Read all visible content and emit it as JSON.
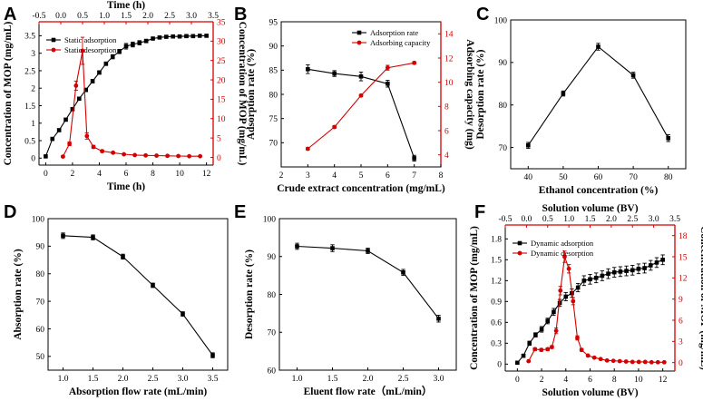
{
  "chart_data": [
    {
      "panel": "A",
      "type": "line",
      "xlabel": "Time (h)",
      "ylabel": "Concentration of MOP (mg/mL)",
      "x2label": "Time (h)",
      "y2label": "Concentration of MOP (mg/mL)",
      "xlim": [
        -0.5,
        12.5
      ],
      "ylim": [
        -0.2,
        3.9
      ],
      "x2lim": [
        -0.5,
        3.5
      ],
      "y2lim": [
        -2,
        35
      ],
      "xticks": [
        0,
        2,
        4,
        6,
        8,
        10,
        12
      ],
      "yticks": [
        0,
        0.5,
        1,
        1.5,
        2,
        2.5,
        3,
        3.5
      ],
      "x2ticks": [
        -0.5,
        0.0,
        0.5,
        1.0,
        1.5,
        2.0,
        2.5,
        3.0,
        3.5
      ],
      "y2ticks": [
        0,
        5,
        10,
        15,
        20,
        25,
        30,
        35
      ],
      "xtick_labels": [
        "0",
        "2",
        "4",
        "6",
        "8",
        "10",
        "12"
      ],
      "ytick_labels": [
        "0",
        "0.5",
        "1",
        "1.5",
        "2",
        "2.5",
        "3",
        "3.5"
      ],
      "x2tick_labels": [
        "-0.5",
        "0.0",
        "0.5",
        "1.0",
        "1.5",
        "2.0",
        "2.5",
        "3.0",
        "3.5"
      ],
      "y2tick_labels": [
        "0",
        "5",
        "10",
        "15",
        "20",
        "25",
        "30",
        "35"
      ],
      "legend": [
        "Static adsorption",
        "Static desorption"
      ],
      "legend_position": "top-left",
      "series": [
        {
          "name": "Static adsorption",
          "axis": "primary",
          "color": "#000000",
          "marker": "square",
          "x": [
            0,
            0.5,
            1,
            1.5,
            2,
            2.5,
            3,
            3.5,
            4,
            4.5,
            5,
            5.5,
            6,
            6.5,
            7,
            7.5,
            8,
            8.5,
            9,
            9.5,
            10,
            10.5,
            11,
            11.5,
            12
          ],
          "y": [
            0.05,
            0.55,
            0.8,
            1.1,
            1.4,
            1.7,
            1.95,
            2.2,
            2.45,
            2.7,
            2.9,
            3.05,
            3.2,
            3.25,
            3.3,
            3.35,
            3.42,
            3.45,
            3.47,
            3.48,
            3.48,
            3.49,
            3.49,
            3.5,
            3.5
          ],
          "err": [
            0,
            0.03,
            0.03,
            0.04,
            0.04,
            0.04,
            0.05,
            0.05,
            0.05,
            0.05,
            0.06,
            0.06,
            0.08,
            0.07,
            0.06,
            0.05,
            0.04,
            0.03,
            0.03,
            0.03,
            0.03,
            0.03,
            0.03,
            0.03,
            0.03
          ]
        },
        {
          "name": "Static desorption",
          "axis": "secondary",
          "color": "#d40000",
          "marker": "circle",
          "x": [
            0.05,
            0.2,
            0.35,
            0.5,
            0.6,
            0.75,
            0.95,
            1.2,
            1.45,
            1.7,
            1.95,
            2.2,
            2.45,
            2.7,
            2.95,
            3.2
          ],
          "y": [
            0.2,
            3.5,
            18.5,
            27.5,
            5.5,
            2.7,
            1.6,
            1.2,
            0.8,
            0.6,
            0.5,
            0.45,
            0.4,
            0.35,
            0.3,
            0.3
          ],
          "err": [
            0.2,
            0.5,
            1.2,
            3.5,
            0.8,
            0.4,
            0.3,
            0.2,
            0.15,
            0.1,
            0.1,
            0.1,
            0.1,
            0.1,
            0.1,
            0.1
          ]
        }
      ]
    },
    {
      "panel": "B",
      "type": "line",
      "xlabel": "Crude extract concentration (mg/mL)",
      "ylabel": "Adsorption rate (%)",
      "y2label": "Adsorbing capacity (mg)",
      "xlim": [
        2,
        8
      ],
      "ylim": [
        65,
        95
      ],
      "y2lim": [
        3,
        15
      ],
      "xticks": [
        2,
        3,
        4,
        5,
        6,
        7,
        8
      ],
      "yticks": [
        70,
        75,
        80,
        85,
        90,
        95
      ],
      "y2ticks": [
        4,
        6,
        8,
        10,
        12,
        14
      ],
      "xtick_labels": [
        "2",
        "3",
        "4",
        "5",
        "6",
        "7",
        "8"
      ],
      "ytick_labels": [
        "70",
        "75",
        "80",
        "85",
        "90",
        "95"
      ],
      "y2tick_labels": [
        "4",
        "6",
        "8",
        "10",
        "12",
        "14"
      ],
      "legend": [
        "Adsorption rate",
        "Adsorbing capacity"
      ],
      "legend_position": "top-right",
      "series": [
        {
          "name": "Adsorption rate",
          "axis": "primary",
          "color": "#000000",
          "marker": "square",
          "x": [
            3,
            4,
            5,
            6,
            7
          ],
          "y": [
            85.2,
            84.3,
            83.7,
            82.2,
            66.8
          ],
          "err": [
            0.9,
            0.6,
            0.9,
            0.7,
            0.6
          ]
        },
        {
          "name": "Adsorbing capacity",
          "axis": "secondary",
          "color": "#d40000",
          "marker": "circle",
          "x": [
            3,
            4,
            5,
            6,
            7
          ],
          "y": [
            4.5,
            6.3,
            8.9,
            11.2,
            11.6
          ],
          "err": [
            0.1,
            0.1,
            0.1,
            0.2,
            0.1
          ]
        }
      ]
    },
    {
      "panel": "C",
      "type": "line",
      "xlabel": "Ethanol concentration (%)",
      "ylabel": "Desorption rate (%)",
      "xlim": [
        35,
        85
      ],
      "ylim": [
        65,
        100
      ],
      "xticks": [
        40,
        50,
        60,
        70,
        80
      ],
      "yticks": [
        70,
        80,
        90,
        100
      ],
      "xtick_labels": [
        "40",
        "50",
        "60",
        "70",
        "80"
      ],
      "ytick_labels": [
        "70",
        "80",
        "90",
        "100"
      ],
      "series": [
        {
          "name": "Desorption rate",
          "color": "#000000",
          "marker": "square",
          "x": [
            40,
            50,
            60,
            70,
            80
          ],
          "y": [
            70.5,
            82.7,
            93.7,
            87.0,
            72.2
          ],
          "err": [
            0.7,
            0.6,
            0.8,
            0.7,
            0.8
          ]
        }
      ]
    },
    {
      "panel": "D",
      "type": "line",
      "xlabel": "Absorption flow rate (mL/min)",
      "ylabel": "Absorption rate (%)",
      "xlim": [
        0.75,
        3.75
      ],
      "ylim": [
        45,
        100
      ],
      "xticks": [
        1.0,
        1.5,
        2.0,
        2.5,
        3.0,
        3.5
      ],
      "yticks": [
        50,
        60,
        70,
        80,
        90,
        100
      ],
      "xtick_labels": [
        "1.0",
        "1.5",
        "2.0",
        "2.5",
        "3.0",
        "3.5"
      ],
      "ytick_labels": [
        "50",
        "60",
        "70",
        "80",
        "90",
        "100"
      ],
      "series": [
        {
          "name": "Absorption rate",
          "color": "#000000",
          "marker": "square",
          "x": [
            1.0,
            1.5,
            2.0,
            2.5,
            3.0,
            3.5
          ],
          "y": [
            93.8,
            93.2,
            86.2,
            75.8,
            65.4,
            50.4
          ],
          "err": [
            1.0,
            0.9,
            0.9,
            0.8,
            0.8,
            0.9
          ]
        }
      ]
    },
    {
      "panel": "E",
      "type": "line",
      "xlabel": "Eluent flow rate（mL/min）",
      "ylabel": "Desorption rate (%)",
      "xlim": [
        0.75,
        3.25
      ],
      "ylim": [
        60,
        100
      ],
      "xticks": [
        1.0,
        1.5,
        2.0,
        2.5,
        3.0
      ],
      "yticks": [
        60,
        70,
        80,
        90,
        100
      ],
      "xtick_labels": [
        "1.0",
        "1.5",
        "2.0",
        "2.5",
        "3.0"
      ],
      "ytick_labels": [
        "60",
        "70",
        "80",
        "90",
        "100"
      ],
      "series": [
        {
          "name": "Desorption rate",
          "color": "#000000",
          "marker": "square",
          "x": [
            1.0,
            1.5,
            2.0,
            2.5,
            3.0
          ],
          "y": [
            92.7,
            92.2,
            91.5,
            85.8,
            73.6
          ],
          "err": [
            0.8,
            0.9,
            0.7,
            0.8,
            0.9
          ]
        }
      ]
    },
    {
      "panel": "F",
      "type": "line",
      "xlabel": "Solution volume (BV)",
      "ylabel": "Concentration of MOP (mg/mL)",
      "x2label": "Solution volume (BV)",
      "y2label": "Concentration of MOP (mg/mL)",
      "xlim": [
        -1,
        13
      ],
      "ylim": [
        -0.1,
        2.0
      ],
      "x2lim": [
        -0.5,
        3.5
      ],
      "y2lim": [
        -1.2,
        19.5
      ],
      "xticks": [
        0,
        2,
        4,
        6,
        8,
        10,
        12
      ],
      "yticks": [
        0,
        0.3,
        0.6,
        0.9,
        1.2,
        1.5,
        1.8
      ],
      "x2ticks": [
        -0.5,
        0.0,
        0.5,
        1.0,
        1.5,
        2.0,
        2.5,
        3.0,
        3.5
      ],
      "y2ticks": [
        0,
        3,
        6,
        9,
        12,
        15,
        18
      ],
      "xtick_labels": [
        "0",
        "2",
        "4",
        "6",
        "8",
        "10",
        "12"
      ],
      "ytick_labels": [
        "0",
        "0.3",
        "0.6",
        "0.9",
        "1.2",
        "1.5",
        "1.8"
      ],
      "x2tick_labels": [
        "-0.5",
        "0.0",
        "0.5",
        "1.0",
        "1.5",
        "2.0",
        "2.5",
        "3.0",
        "3.5"
      ],
      "y2tick_labels": [
        "0",
        "3",
        "6",
        "9",
        "12",
        "15",
        "18"
      ],
      "legend": [
        "Dynamic adsorption",
        "Dynamic desorption"
      ],
      "legend_position": "top-left",
      "series": [
        {
          "name": "Dynamic adsorption",
          "axis": "primary",
          "color": "#000000",
          "marker": "square",
          "x": [
            0,
            0.5,
            1,
            1.5,
            2,
            2.5,
            3,
            3.5,
            4,
            4.5,
            5,
            5.5,
            6,
            6.5,
            7,
            7.5,
            8,
            8.5,
            9,
            9.5,
            10,
            10.5,
            11,
            11.5,
            12
          ],
          "y": [
            0.02,
            0.12,
            0.3,
            0.42,
            0.5,
            0.62,
            0.75,
            0.88,
            0.97,
            1.02,
            1.1,
            1.2,
            1.22,
            1.24,
            1.27,
            1.3,
            1.32,
            1.33,
            1.34,
            1.35,
            1.37,
            1.38,
            1.42,
            1.46,
            1.5
          ],
          "err": [
            0,
            0.02,
            0.03,
            0.03,
            0.04,
            0.04,
            0.05,
            0.05,
            0.06,
            0.06,
            0.06,
            0.07,
            0.07,
            0.07,
            0.07,
            0.07,
            0.07,
            0.07,
            0.07,
            0.07,
            0.07,
            0.07,
            0.07,
            0.07,
            0.07
          ]
        },
        {
          "name": "Dynamic desorption",
          "axis": "secondary",
          "color": "#d40000",
          "marker": "circle",
          "x": [
            0.05,
            0.2,
            0.35,
            0.5,
            0.6,
            0.7,
            0.8,
            0.9,
            1.0,
            1.1,
            1.2,
            1.3,
            1.45,
            1.6,
            1.75,
            1.9,
            2.05,
            2.2,
            2.35,
            2.5,
            2.65,
            2.8,
            2.95,
            3.1,
            3.25
          ],
          "y": [
            0.2,
            1.9,
            1.8,
            1.9,
            2.2,
            4.5,
            10.2,
            15.0,
            13.3,
            8.7,
            3.5,
            1.8,
            1.0,
            0.7,
            0.5,
            0.3,
            0.25,
            0.2,
            0.15,
            0.1,
            0.1,
            0.1,
            0.05,
            0.05,
            0.05
          ],
          "err": [
            0.1,
            0.2,
            0.2,
            0.2,
            0.2,
            0.4,
            0.6,
            0.8,
            0.6,
            0.5,
            0.3,
            0.2,
            0.1,
            0.1,
            0.1,
            0.1,
            0.1,
            0.1,
            0.1,
            0.1,
            0.1,
            0.1,
            0.1,
            0.1,
            0.1
          ]
        }
      ]
    }
  ]
}
